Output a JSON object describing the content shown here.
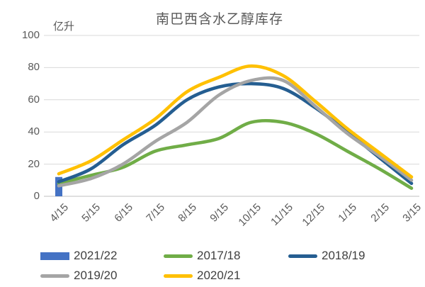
{
  "chart_data": {
    "type": "combo",
    "title": "南巴西含水乙醇库存",
    "ylabel": "亿升",
    "xlabel": "",
    "ylim": [
      0,
      100
    ],
    "ytick_interval": 20,
    "grid": true,
    "legend_position": "bottom",
    "categories": [
      "4/15",
      "5/15",
      "6/15",
      "7/15",
      "8/15",
      "9/15",
      "10/15",
      "11/15",
      "12/15",
      "1/15",
      "2/15",
      "3/15"
    ],
    "series": [
      {
        "name": "2021/22",
        "type": "bar",
        "color": "#4472C4",
        "values": [
          12,
          null,
          null,
          null,
          null,
          null,
          null,
          null,
          null,
          null,
          null,
          null
        ]
      },
      {
        "name": "2017/18",
        "type": "line",
        "color": "#70AD47",
        "values": [
          8,
          13,
          18,
          28,
          32,
          36,
          46,
          46,
          39,
          28,
          17,
          5
        ]
      },
      {
        "name": "2018/19",
        "type": "line",
        "color": "#255E91",
        "values": [
          9,
          17,
          32,
          44,
          60,
          68,
          70,
          67,
          55,
          40,
          24,
          8
        ]
      },
      {
        "name": "2019/20",
        "type": "line",
        "color": "#A5A5A5",
        "values": [
          6.5,
          11,
          20,
          34,
          46,
          63,
          72,
          72,
          56,
          39,
          25,
          10
        ]
      },
      {
        "name": "2020/21",
        "type": "line",
        "color": "#FFC000",
        "values": [
          14,
          22,
          35,
          48,
          65,
          74,
          81,
          75,
          59,
          42,
          27,
          12
        ]
      }
    ],
    "legend_rows": [
      [
        "2021/22",
        "2017/18",
        "2018/19"
      ],
      [
        "2019/20",
        "2020/21"
      ]
    ],
    "axis_colors": {
      "gridline": "#D9D9D9",
      "axis_line": "#BFBFBF",
      "tick_text": "#595959",
      "legend_text": "#404040"
    }
  }
}
